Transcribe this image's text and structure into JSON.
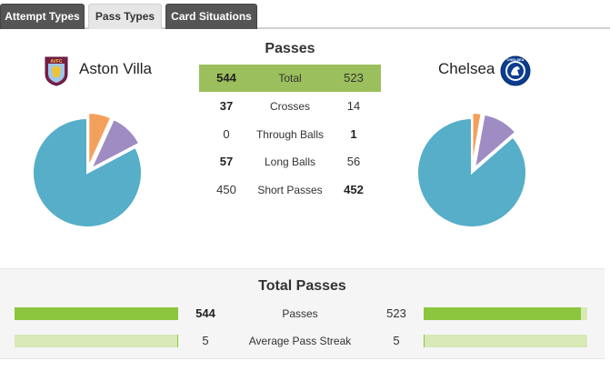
{
  "tabs": [
    {
      "label": "Attempt Types",
      "active": false
    },
    {
      "label": "Pass Types",
      "active": true
    },
    {
      "label": "Card Situations",
      "active": false
    }
  ],
  "home": {
    "name": "Aston Villa",
    "crest_icon": "aston-villa-crest-icon",
    "crest_text": "AVFC"
  },
  "away": {
    "name": "Chelsea",
    "crest_icon": "chelsea-crest-icon",
    "crest_text": "CHELSEA"
  },
  "passes": {
    "title": "Passes",
    "rows": [
      {
        "label": "Total",
        "home": "544",
        "away": "523",
        "home_bold": true,
        "away_bold": false
      },
      {
        "label": "Crosses",
        "home": "37",
        "away": "14",
        "home_bold": true,
        "away_bold": false
      },
      {
        "label": "Through Balls",
        "home": "0",
        "away": "1",
        "home_bold": false,
        "away_bold": true
      },
      {
        "label": "Long Balls",
        "home": "57",
        "away": "56",
        "home_bold": true,
        "away_bold": false
      },
      {
        "label": "Short Passes",
        "home": "450",
        "away": "452",
        "home_bold": false,
        "away_bold": true
      }
    ]
  },
  "chart_data": [
    {
      "type": "pie",
      "team": "Aston Villa",
      "slices": [
        {
          "label": "Crosses",
          "value": 37,
          "color": "#f5a05a"
        },
        {
          "label": "Long Balls",
          "value": 57,
          "color": "#9e8cc3"
        },
        {
          "label": "Short Passes",
          "value": 450,
          "color": "#56aec8"
        }
      ]
    },
    {
      "type": "pie",
      "team": "Chelsea",
      "slices": [
        {
          "label": "Crosses",
          "value": 14,
          "color": "#f5a05a"
        },
        {
          "label": "Through Balls",
          "value": 1,
          "color": "#8cc63f"
        },
        {
          "label": "Long Balls",
          "value": 56,
          "color": "#9e8cc3"
        },
        {
          "label": "Short Passes",
          "value": 452,
          "color": "#56aec8"
        }
      ]
    }
  ],
  "total_passes": {
    "title": "Total Passes",
    "rows": [
      {
        "label": "Passes",
        "home": "544",
        "away": "523",
        "home_bold": true,
        "away_bold": false,
        "home_fill": 1.0,
        "away_fill": 0.96
      },
      {
        "label": "Average Pass Streak",
        "home": "5",
        "away": "5",
        "home_bold": false,
        "away_bold": false,
        "home_fill": 0.0,
        "away_fill": 0.0
      }
    ]
  },
  "colors": {
    "bar_fill": "#8cc63f",
    "bar_track": "#d8e9b6",
    "highlight_row": "#9bbf5c"
  }
}
